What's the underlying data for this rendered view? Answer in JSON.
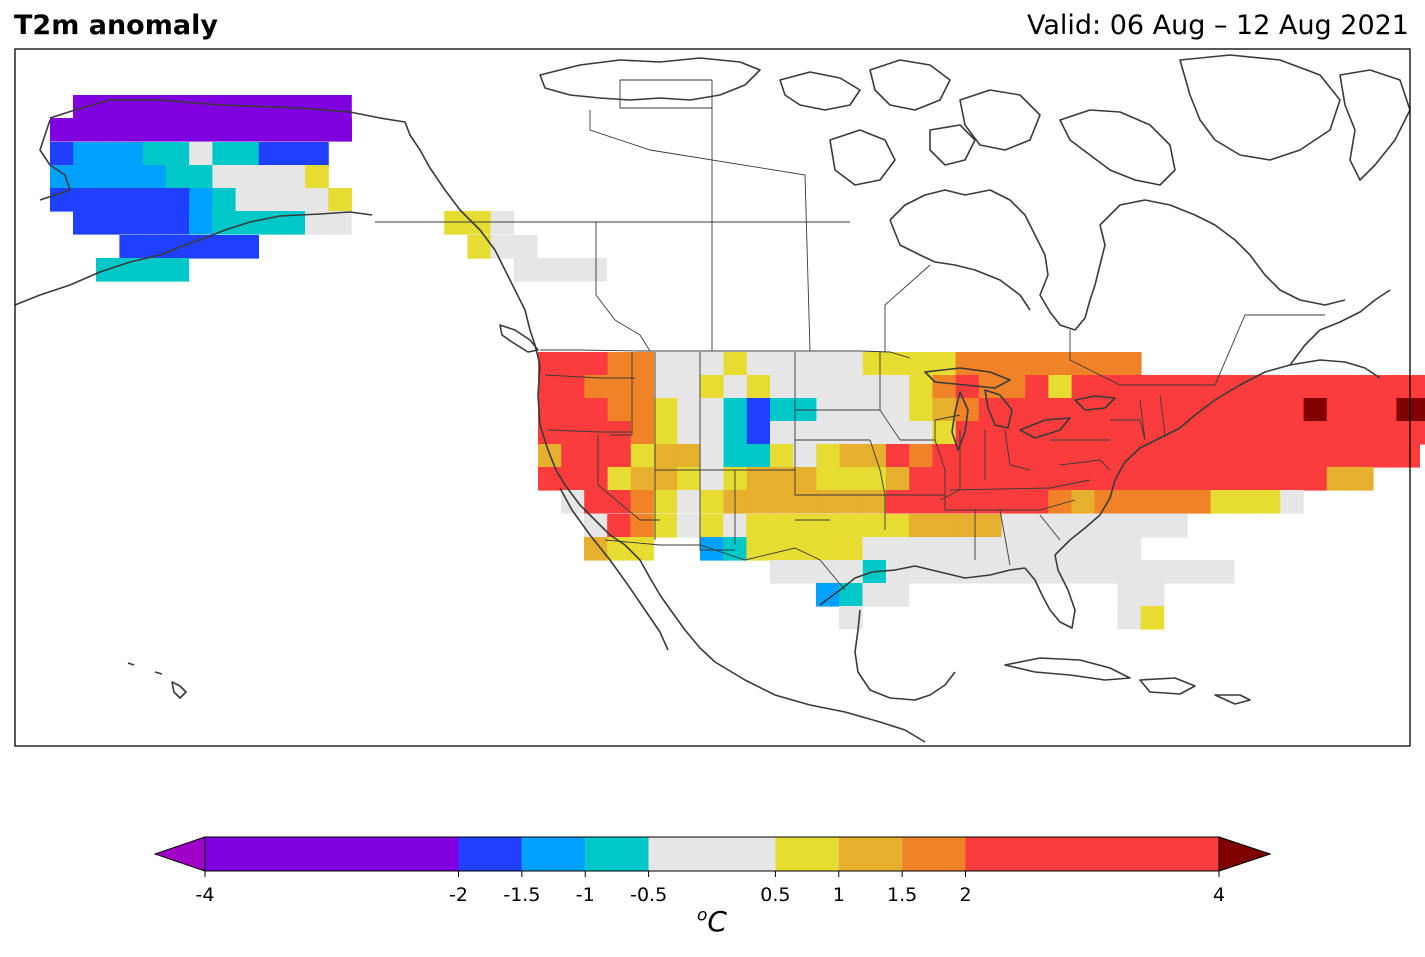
{
  "title": "T2m anomaly",
  "valid": "Valid: 06 Aug – 12 Aug 2021",
  "colorbar": {
    "unit_base": "C",
    "unit_sup": "o",
    "ticks": [
      "-4",
      "-2",
      "-1.5",
      "-1",
      "-0.5",
      "0.5",
      "1",
      "1.5",
      "2",
      "4"
    ],
    "tick_values": [
      -4,
      -2,
      -1.5,
      -1,
      -0.5,
      0.5,
      1,
      1.5,
      2,
      4
    ],
    "bins": [
      {
        "from": -4,
        "to": -2,
        "color": "#8000e0"
      },
      {
        "from": -2,
        "to": -1.5,
        "color": "#2040ff"
      },
      {
        "from": -1.5,
        "to": -1,
        "color": "#00a0ff"
      },
      {
        "from": -1,
        "to": -0.5,
        "color": "#00c8c8"
      },
      {
        "from": -0.5,
        "to": 0.5,
        "color": "#e6e6e6"
      },
      {
        "from": 0.5,
        "to": 1,
        "color": "#e6dc32"
      },
      {
        "from": 1,
        "to": 1.5,
        "color": "#e6af2d"
      },
      {
        "from": 1.5,
        "to": 2,
        "color": "#f08228"
      },
      {
        "from": 2,
        "to": 4,
        "color": "#fa3c3c"
      }
    ],
    "under_color": "#a000c8",
    "over_color": "#800000"
  },
  "palette": {
    "P": "#8000e0",
    "B": "#2040ff",
    "L": "#00a0ff",
    "C": "#00c8c8",
    "G": "#e6e6e6",
    "Y": "#e6dc32",
    "O": "#e6af2d",
    "D": "#f08228",
    "R": "#fa3c3c",
    "M": "#800000",
    "V": "#a000c8"
  },
  "map": {
    "region": "North America",
    "projection": "plate carree",
    "features": [
      "coastlines",
      "country borders",
      "US state borders",
      "Canadian province borders"
    ]
  }
}
